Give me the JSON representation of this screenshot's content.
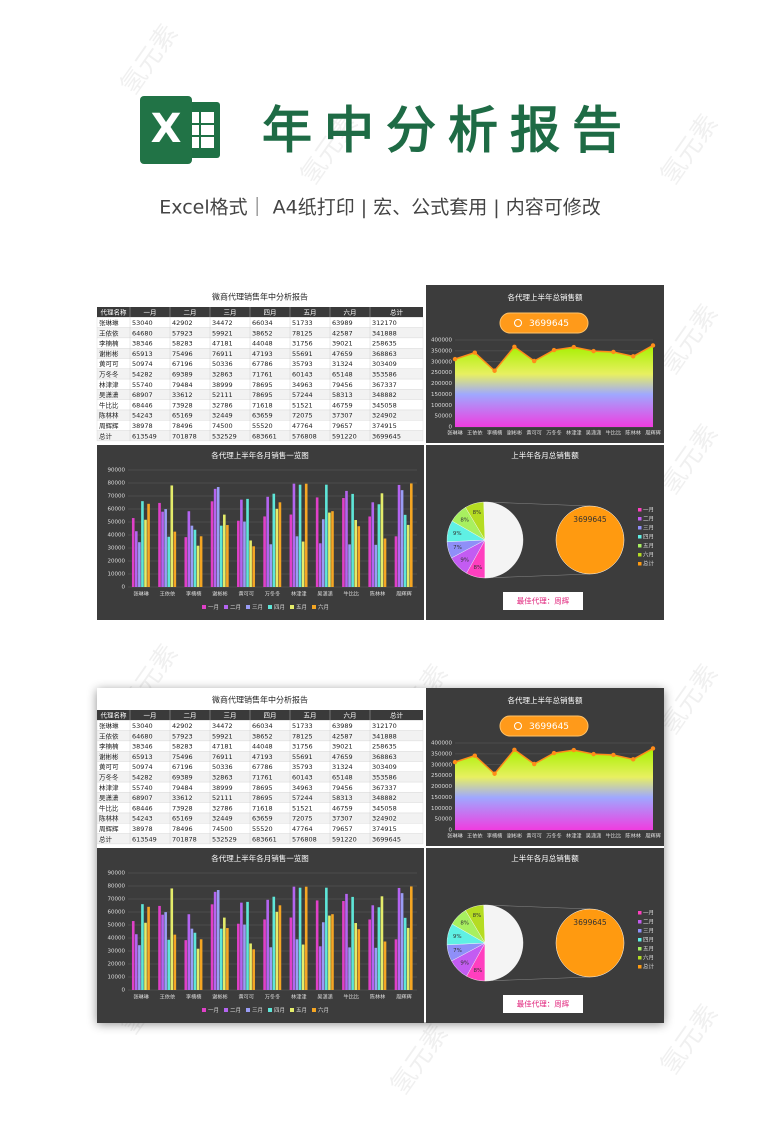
{
  "header": {
    "logo_letter": "X",
    "title": "年中分析报告",
    "subtitle": "Excel格式｜ A4纸打印 | 宏、公式套用 | 内容可修改"
  },
  "watermark": "氢元素",
  "table": {
    "title": "微商代理销售年中分析报告",
    "columns": [
      "代理名称",
      "一月",
      "二月",
      "三月",
      "四月",
      "五月",
      "六月",
      "总计"
    ],
    "rows": [
      [
        "张琳琳",
        53040,
        42902,
        34472,
        66034,
        51733,
        63989,
        312170
      ],
      [
        "王依依",
        64680,
        57923,
        59921,
        38652,
        78125,
        42587,
        341888
      ],
      [
        "李楠楠",
        38346,
        58283,
        47181,
        44048,
        31756,
        39021,
        258635
      ],
      [
        "谢彬彬",
        65913,
        75496,
        76911,
        47193,
        55691,
        47659,
        368863
      ],
      [
        "黄可可",
        50974,
        67196,
        50336,
        67786,
        35793,
        31324,
        303409
      ],
      [
        "万冬冬",
        54282,
        69389,
        32863,
        71761,
        60143,
        65148,
        353586
      ],
      [
        "林津津",
        55740,
        79484,
        38999,
        78695,
        34963,
        79456,
        367337
      ],
      [
        "吴潇潇",
        68907,
        33612,
        52111,
        78695,
        57244,
        58313,
        348882
      ],
      [
        "牛比比",
        68446,
        73928,
        32786,
        71618,
        51521,
        46759,
        345058
      ],
      [
        "陈林林",
        54243,
        65169,
        32449,
        63659,
        72075,
        37307,
        324902
      ],
      [
        "周辉辉",
        38978,
        78496,
        74500,
        55520,
        47764,
        79657,
        374915
      ],
      [
        "总计",
        613549,
        701878,
        532529,
        683661,
        576808,
        591220,
        3699645
      ]
    ]
  },
  "chart_data": [
    {
      "type": "area",
      "title": "各代理上半年总销售额",
      "badge": "3699645",
      "color": "#ff8c1a",
      "categories": [
        "张琳琳",
        "王依依",
        "李楠楠",
        "谢彬彬",
        "黄可可",
        "万冬冬",
        "林津津",
        "吴潇潇",
        "牛比比",
        "陈林林",
        "周辉辉"
      ],
      "values": [
        312170,
        341888,
        258635,
        368863,
        303409,
        353586,
        367337,
        348882,
        345058,
        324902,
        374915
      ],
      "ylim": [
        0,
        400000
      ],
      "yticks": [
        0,
        50000,
        100000,
        150000,
        200000,
        250000,
        300000,
        350000,
        400000
      ],
      "grid": true
    },
    {
      "type": "bar",
      "title": "各代理上半年各月销售一览图",
      "categories": [
        "张琳琳",
        "王依依",
        "李楠楠",
        "谢彬彬",
        "黄可可",
        "万冬冬",
        "林津津",
        "吴潇潇",
        "牛比比",
        "陈林林",
        "周辉辉"
      ],
      "series": [
        {
          "name": "一月",
          "color": "#e040c8",
          "values": [
            53040,
            64680,
            38346,
            65913,
            50974,
            54282,
            55740,
            68907,
            68446,
            54243,
            38978
          ]
        },
        {
          "name": "二月",
          "color": "#b464f0",
          "values": [
            42902,
            57923,
            58283,
            75496,
            67196,
            69389,
            79484,
            33612,
            73928,
            65169,
            78496
          ]
        },
        {
          "name": "三月",
          "color": "#9a9cf5",
          "values": [
            34472,
            59921,
            47181,
            76911,
            50336,
            32863,
            38999,
            52111,
            32786,
            32449,
            74500
          ]
        },
        {
          "name": "四月",
          "color": "#5ee6d8",
          "values": [
            66034,
            38652,
            44048,
            47193,
            67786,
            71761,
            78695,
            78695,
            71618,
            63659,
            55520
          ]
        },
        {
          "name": "五月",
          "color": "#e4ec6a",
          "values": [
            51733,
            78125,
            31756,
            55691,
            35793,
            60143,
            34963,
            57244,
            51521,
            72075,
            47764
          ]
        },
        {
          "name": "六月",
          "color": "#f5a623",
          "values": [
            63989,
            42587,
            39021,
            47659,
            31324,
            65148,
            79456,
            58313,
            46759,
            37307,
            79657
          ]
        }
      ],
      "ylim": [
        0,
        90000
      ],
      "yticks": [
        0,
        10000,
        20000,
        30000,
        40000,
        50000,
        60000,
        70000,
        80000,
        90000
      ],
      "grid": true,
      "legend": "bottom"
    },
    {
      "type": "pie",
      "title": "上半年各月总销售额",
      "categories": [
        "一月",
        "二月",
        "三月",
        "四月",
        "五月",
        "六月",
        "总计"
      ],
      "values": [
        8,
        9,
        7,
        9,
        8,
        8,
        50
      ],
      "value_labels": [
        "8%",
        "9%",
        "7%",
        "9%",
        "8%",
        "8%",
        null
      ],
      "colors": [
        "#ff3fbf",
        "#c35cf2",
        "#8f8ff8",
        "#5ff0e4",
        "#a8f060",
        "#b5dc22",
        "#f4f4f4"
      ],
      "legend_colors": [
        "#ff3fbf",
        "#c35cf2",
        "#8f8ff8",
        "#5ff0e4",
        "#a8f060",
        "#b5dc22",
        "#ff9a10"
      ],
      "secondary_color": "#ff9a10",
      "secondary_label": "3699645",
      "legend": "right",
      "annotation": "最佳代理：周辉"
    }
  ]
}
